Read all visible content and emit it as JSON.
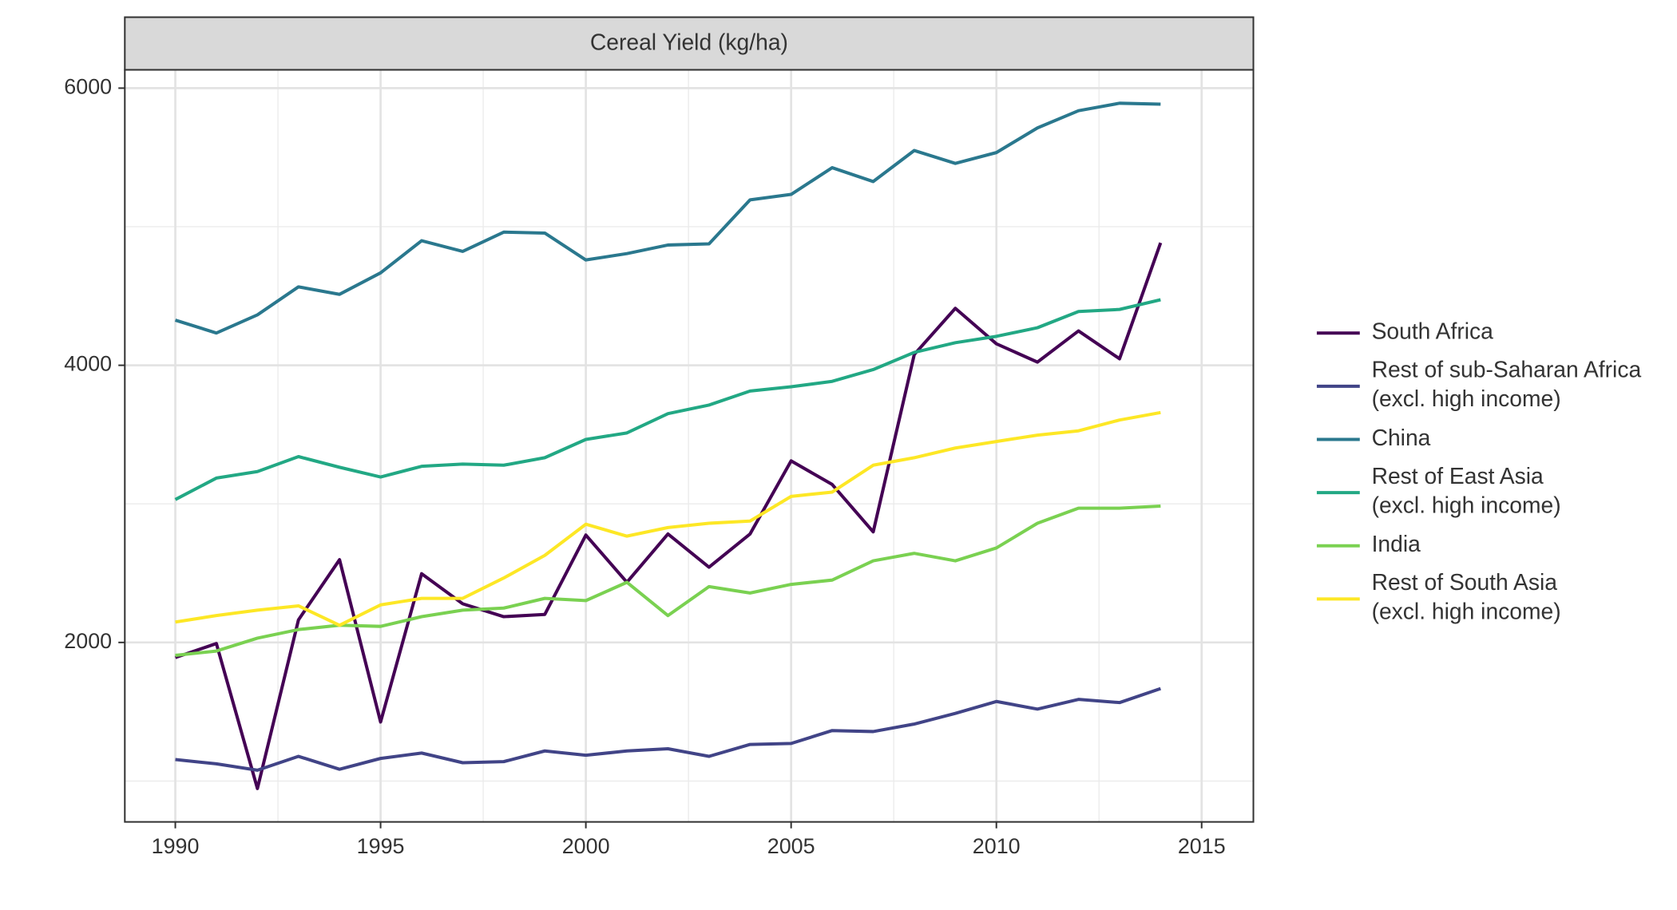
{
  "chart_data": {
    "type": "line",
    "title": "Cereal Yield (kg/ha)",
    "x": [
      1990,
      1991,
      1992,
      1993,
      1994,
      1995,
      1996,
      1997,
      1998,
      1999,
      2000,
      2001,
      2002,
      2003,
      2004,
      2005,
      2006,
      2007,
      2008,
      2009,
      2010,
      2011,
      2012,
      2013,
      2014
    ],
    "series": [
      {
        "name": "South Africa",
        "color": "#440154",
        "values": [
          1891,
          1992,
          946,
          2163,
          2597,
          1426,
          2496,
          2279,
          2186,
          2202,
          2775,
          2434,
          2783,
          2543,
          2783,
          3310,
          3140,
          2798,
          4078,
          4411,
          4155,
          4023,
          4248,
          4047,
          4884
        ]
      },
      {
        "name": "Rest of sub-Saharan Africa\n(excl. high income)",
        "color": "#414487",
        "values": [
          1155,
          1124,
          1078,
          1178,
          1085,
          1163,
          1202,
          1132,
          1140,
          1217,
          1186,
          1217,
          1233,
          1178,
          1264,
          1271,
          1364,
          1357,
          1411,
          1488,
          1574,
          1519,
          1589,
          1566,
          1667
        ]
      },
      {
        "name": "China",
        "color": "#2a788e",
        "values": [
          4326,
          4233,
          4364,
          4566,
          4512,
          4667,
          4899,
          4822,
          4961,
          4954,
          4760,
          4806,
          4868,
          4876,
          5194,
          5233,
          5426,
          5326,
          5550,
          5457,
          5535,
          5713,
          5837,
          5891,
          5884
        ]
      },
      {
        "name": "Rest of East Asia\n(excl. high income)",
        "color": "#22a884",
        "values": [
          3031,
          3186,
          3233,
          3341,
          3264,
          3194,
          3271,
          3287,
          3279,
          3333,
          3465,
          3512,
          3651,
          3713,
          3814,
          3845,
          3884,
          3969,
          4093,
          4163,
          4209,
          4271,
          4388,
          4403,
          4473
        ]
      },
      {
        "name": "India",
        "color": "#7ad151",
        "values": [
          1907,
          1938,
          2031,
          2093,
          2124,
          2116,
          2186,
          2233,
          2248,
          2318,
          2302,
          2434,
          2194,
          2403,
          2357,
          2419,
          2450,
          2589,
          2643,
          2589,
          2682,
          2860,
          2969,
          2969,
          2984
        ]
      },
      {
        "name": "Rest of South Asia\n(excl. high income)",
        "color": "#fde725",
        "values": [
          2147,
          2194,
          2233,
          2264,
          2124,
          2271,
          2318,
          2318,
          2465,
          2628,
          2853,
          2767,
          2829,
          2860,
          2876,
          3054,
          3085,
          3279,
          3333,
          3403,
          3450,
          3496,
          3527,
          3605,
          3659
        ]
      }
    ],
    "xlim": [
      1988.77,
      2016.26
    ],
    "xticks": [
      1990,
      1995,
      2000,
      2005,
      2010,
      2015
    ],
    "ylim": [
      705,
      6132
    ],
    "yticks": [
      2000,
      4000,
      6000
    ],
    "x_minor_grid": [
      1992.5,
      1997.5,
      2002.5,
      2007.5,
      2012.5
    ],
    "y_minor_grid": [
      1000,
      3000,
      5000
    ],
    "grid": true,
    "legend": "right"
  }
}
